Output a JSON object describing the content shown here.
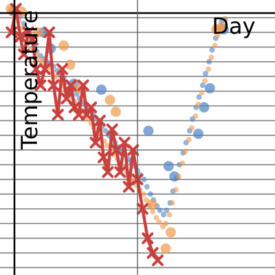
{
  "chart_data": {
    "type": "scatter",
    "title": "",
    "xlabel": "Day",
    "ylabel": "Temperature",
    "xlim": [
      0,
      38
    ],
    "ylim": [
      3.5,
      22.2
    ],
    "grid": {
      "horizontal": true,
      "vertical": false,
      "hstep": 1
    },
    "x_spine_at": 19,
    "series": [
      {
        "type": "scatter",
        "color": "#4d82c3",
        "points": [
          [
            1.6,
            21.3
          ],
          [
            2.2,
            21.5
          ],
          [
            2.8,
            21.1
          ],
          [
            3.3,
            20.6
          ],
          [
            3.8,
            19.9
          ],
          [
            4.2,
            19.4
          ],
          [
            4.7,
            19.1
          ],
          [
            5.1,
            18.7
          ],
          [
            5.6,
            18.4
          ],
          [
            6.1,
            18.2
          ],
          [
            6.5,
            18.0
          ],
          [
            7.0,
            17.8
          ],
          [
            7.4,
            17.7
          ],
          [
            7.9,
            17.4
          ],
          [
            8.3,
            17.1
          ],
          [
            8.8,
            16.9
          ],
          [
            9.2,
            16.6
          ],
          [
            9.7,
            16.3
          ],
          [
            10.1,
            16.1
          ],
          [
            10.6,
            15.8
          ],
          [
            11.0,
            15.5
          ],
          [
            11.4,
            15.2
          ],
          [
            11.9,
            15.0
          ],
          [
            12.3,
            14.7
          ],
          [
            12.8,
            14.4
          ],
          [
            13.2,
            14.2
          ],
          [
            13.7,
            13.9
          ],
          [
            14.1,
            13.6
          ],
          [
            14.6,
            13.3
          ],
          [
            15.0,
            13.0
          ],
          [
            15.4,
            12.8
          ],
          [
            15.9,
            12.5
          ],
          [
            16.3,
            12.2
          ],
          [
            16.8,
            12.0
          ],
          [
            17.2,
            11.7
          ],
          [
            17.7,
            11.4
          ],
          [
            18.1,
            11.2
          ],
          [
            18.6,
            10.9
          ],
          [
            19.0,
            10.6
          ],
          [
            19.4,
            10.3
          ],
          [
            19.9,
            10.0
          ],
          [
            20.3,
            9.5
          ],
          [
            20.8,
            9.0
          ],
          [
            21.2,
            8.6
          ],
          [
            21.7,
            8.2
          ],
          [
            22.1,
            7.9
          ],
          [
            22.6,
            7.6
          ],
          [
            23.0,
            7.9
          ],
          [
            23.5,
            8.4
          ],
          [
            23.9,
            9.2
          ],
          [
            24.4,
            10.1
          ],
          [
            24.8,
            11.0
          ],
          [
            25.3,
            11.8
          ],
          [
            25.7,
            12.5
          ],
          [
            26.2,
            13.3
          ],
          [
            26.6,
            14.1
          ],
          [
            27.1,
            14.9
          ],
          [
            27.5,
            15.6
          ],
          [
            28.0,
            16.4
          ],
          [
            28.4,
            17.2
          ],
          [
            28.9,
            18.0
          ],
          [
            29.3,
            18.8
          ],
          [
            29.8,
            19.6
          ],
          [
            30.2,
            20.3
          ],
          [
            30.6,
            20.7
          ],
          [
            31.1,
            20.9
          ]
        ],
        "big_points": [
          [
            1.9,
            21.5
          ],
          [
            6.0,
            20.0
          ],
          [
            7.0,
            18.9
          ],
          [
            10.2,
            16.5
          ],
          [
            14.0,
            16.1
          ],
          [
            20.5,
            13.3
          ],
          [
            23.3,
            10.9
          ],
          [
            24.1,
            10.2
          ],
          [
            27.4,
            13.1
          ],
          [
            28.2,
            14.9
          ],
          [
            29.0,
            16.2
          ],
          [
            30.9,
            20.2
          ]
        ]
      },
      {
        "type": "scatter",
        "color": "#f09a4b",
        "points": [
          [
            1.4,
            21.4
          ],
          [
            2.0,
            21.1
          ],
          [
            2.6,
            20.8
          ],
          [
            3.1,
            20.3
          ],
          [
            3.6,
            19.8
          ],
          [
            4.0,
            19.4
          ],
          [
            4.5,
            18.9
          ],
          [
            4.9,
            18.5
          ],
          [
            5.4,
            18.2
          ],
          [
            5.8,
            18.0
          ],
          [
            6.3,
            17.8
          ],
          [
            6.7,
            17.6
          ],
          [
            7.2,
            17.3
          ],
          [
            7.6,
            17.0
          ],
          [
            8.1,
            16.7
          ],
          [
            8.5,
            16.4
          ],
          [
            9.0,
            16.2
          ],
          [
            9.4,
            15.9
          ],
          [
            9.9,
            15.6
          ],
          [
            10.3,
            15.3
          ],
          [
            10.8,
            15.0
          ],
          [
            11.2,
            14.7
          ],
          [
            11.7,
            14.4
          ],
          [
            12.1,
            14.1
          ],
          [
            12.6,
            13.8
          ],
          [
            13.0,
            13.5
          ],
          [
            13.5,
            13.2
          ],
          [
            13.9,
            12.9
          ],
          [
            14.4,
            12.6
          ],
          [
            14.8,
            12.3
          ],
          [
            15.3,
            12.0
          ],
          [
            15.7,
            11.7
          ],
          [
            16.2,
            11.4
          ],
          [
            16.6,
            11.1
          ],
          [
            17.1,
            10.8
          ],
          [
            17.5,
            10.5
          ],
          [
            18.0,
            10.2
          ],
          [
            18.4,
            9.9
          ],
          [
            18.9,
            9.6
          ],
          [
            19.3,
            9.3
          ],
          [
            19.8,
            9.0
          ],
          [
            20.2,
            8.6
          ],
          [
            20.7,
            8.2
          ],
          [
            21.1,
            7.8
          ],
          [
            21.6,
            7.4
          ],
          [
            22.0,
            7.1
          ],
          [
            22.5,
            6.8
          ],
          [
            22.9,
            7.0
          ],
          [
            23.4,
            7.6
          ],
          [
            23.8,
            8.4
          ],
          [
            24.3,
            9.3
          ],
          [
            24.7,
            10.2
          ],
          [
            25.2,
            11.1
          ],
          [
            25.6,
            11.9
          ],
          [
            26.1,
            12.7
          ],
          [
            26.5,
            13.5
          ],
          [
            27.0,
            14.3
          ],
          [
            27.4,
            15.1
          ],
          [
            27.9,
            15.9
          ],
          [
            28.3,
            16.7
          ],
          [
            28.8,
            17.5
          ],
          [
            29.2,
            18.3
          ],
          [
            29.7,
            19.1
          ],
          [
            30.1,
            19.8
          ],
          [
            30.6,
            20.4
          ],
          [
            31.0,
            20.9
          ]
        ],
        "big_points": [
          [
            1.5,
            21.6
          ],
          [
            3.0,
            21.4
          ],
          [
            5.2,
            20.0
          ],
          [
            8.8,
            19.1
          ],
          [
            9.7,
            17.8
          ],
          [
            10.9,
            16.2
          ],
          [
            15.2,
            15.4
          ],
          [
            16.0,
            14.6
          ],
          [
            21.0,
            8.3
          ],
          [
            22.9,
            5.3
          ],
          [
            23.6,
            6.4
          ],
          [
            29.9,
            20.2
          ],
          [
            30.6,
            20.3
          ]
        ]
      },
      {
        "type": "line",
        "color": "#c8413e",
        "marker": "x",
        "points": [
          [
            1.6,
            20.0
          ],
          [
            2.2,
            21.6
          ],
          [
            2.8,
            19.7
          ],
          [
            3.3,
            18.5
          ],
          [
            3.9,
            20.0
          ],
          [
            4.5,
            19.5
          ],
          [
            5.0,
            17.5
          ],
          [
            5.6,
            16.4
          ],
          [
            6.2,
            17.5
          ],
          [
            6.8,
            20.0
          ],
          [
            7.4,
            16.4
          ],
          [
            8.0,
            14.4
          ],
          [
            8.6,
            17.5
          ],
          [
            9.2,
            15.5
          ],
          [
            9.8,
            16.4
          ],
          [
            10.3,
            14.9
          ],
          [
            10.9,
            14.4
          ],
          [
            11.5,
            16.4
          ],
          [
            12.0,
            14.4
          ],
          [
            12.6,
            14.9
          ],
          [
            13.2,
            12.5
          ],
          [
            13.8,
            14.0
          ],
          [
            14.3,
            11.5
          ],
          [
            14.9,
            10.5
          ],
          [
            15.5,
            13.4
          ],
          [
            16.1,
            12.0
          ],
          [
            16.6,
            10.5
          ],
          [
            17.2,
            12.5
          ],
          [
            17.8,
            9.5
          ],
          [
            18.4,
            12.0
          ],
          [
            19.0,
            10.0
          ],
          [
            19.7,
            8.0
          ],
          [
            20.4,
            6.0
          ],
          [
            21.1,
            5.0
          ],
          [
            21.8,
            4.5
          ]
        ]
      }
    ]
  }
}
